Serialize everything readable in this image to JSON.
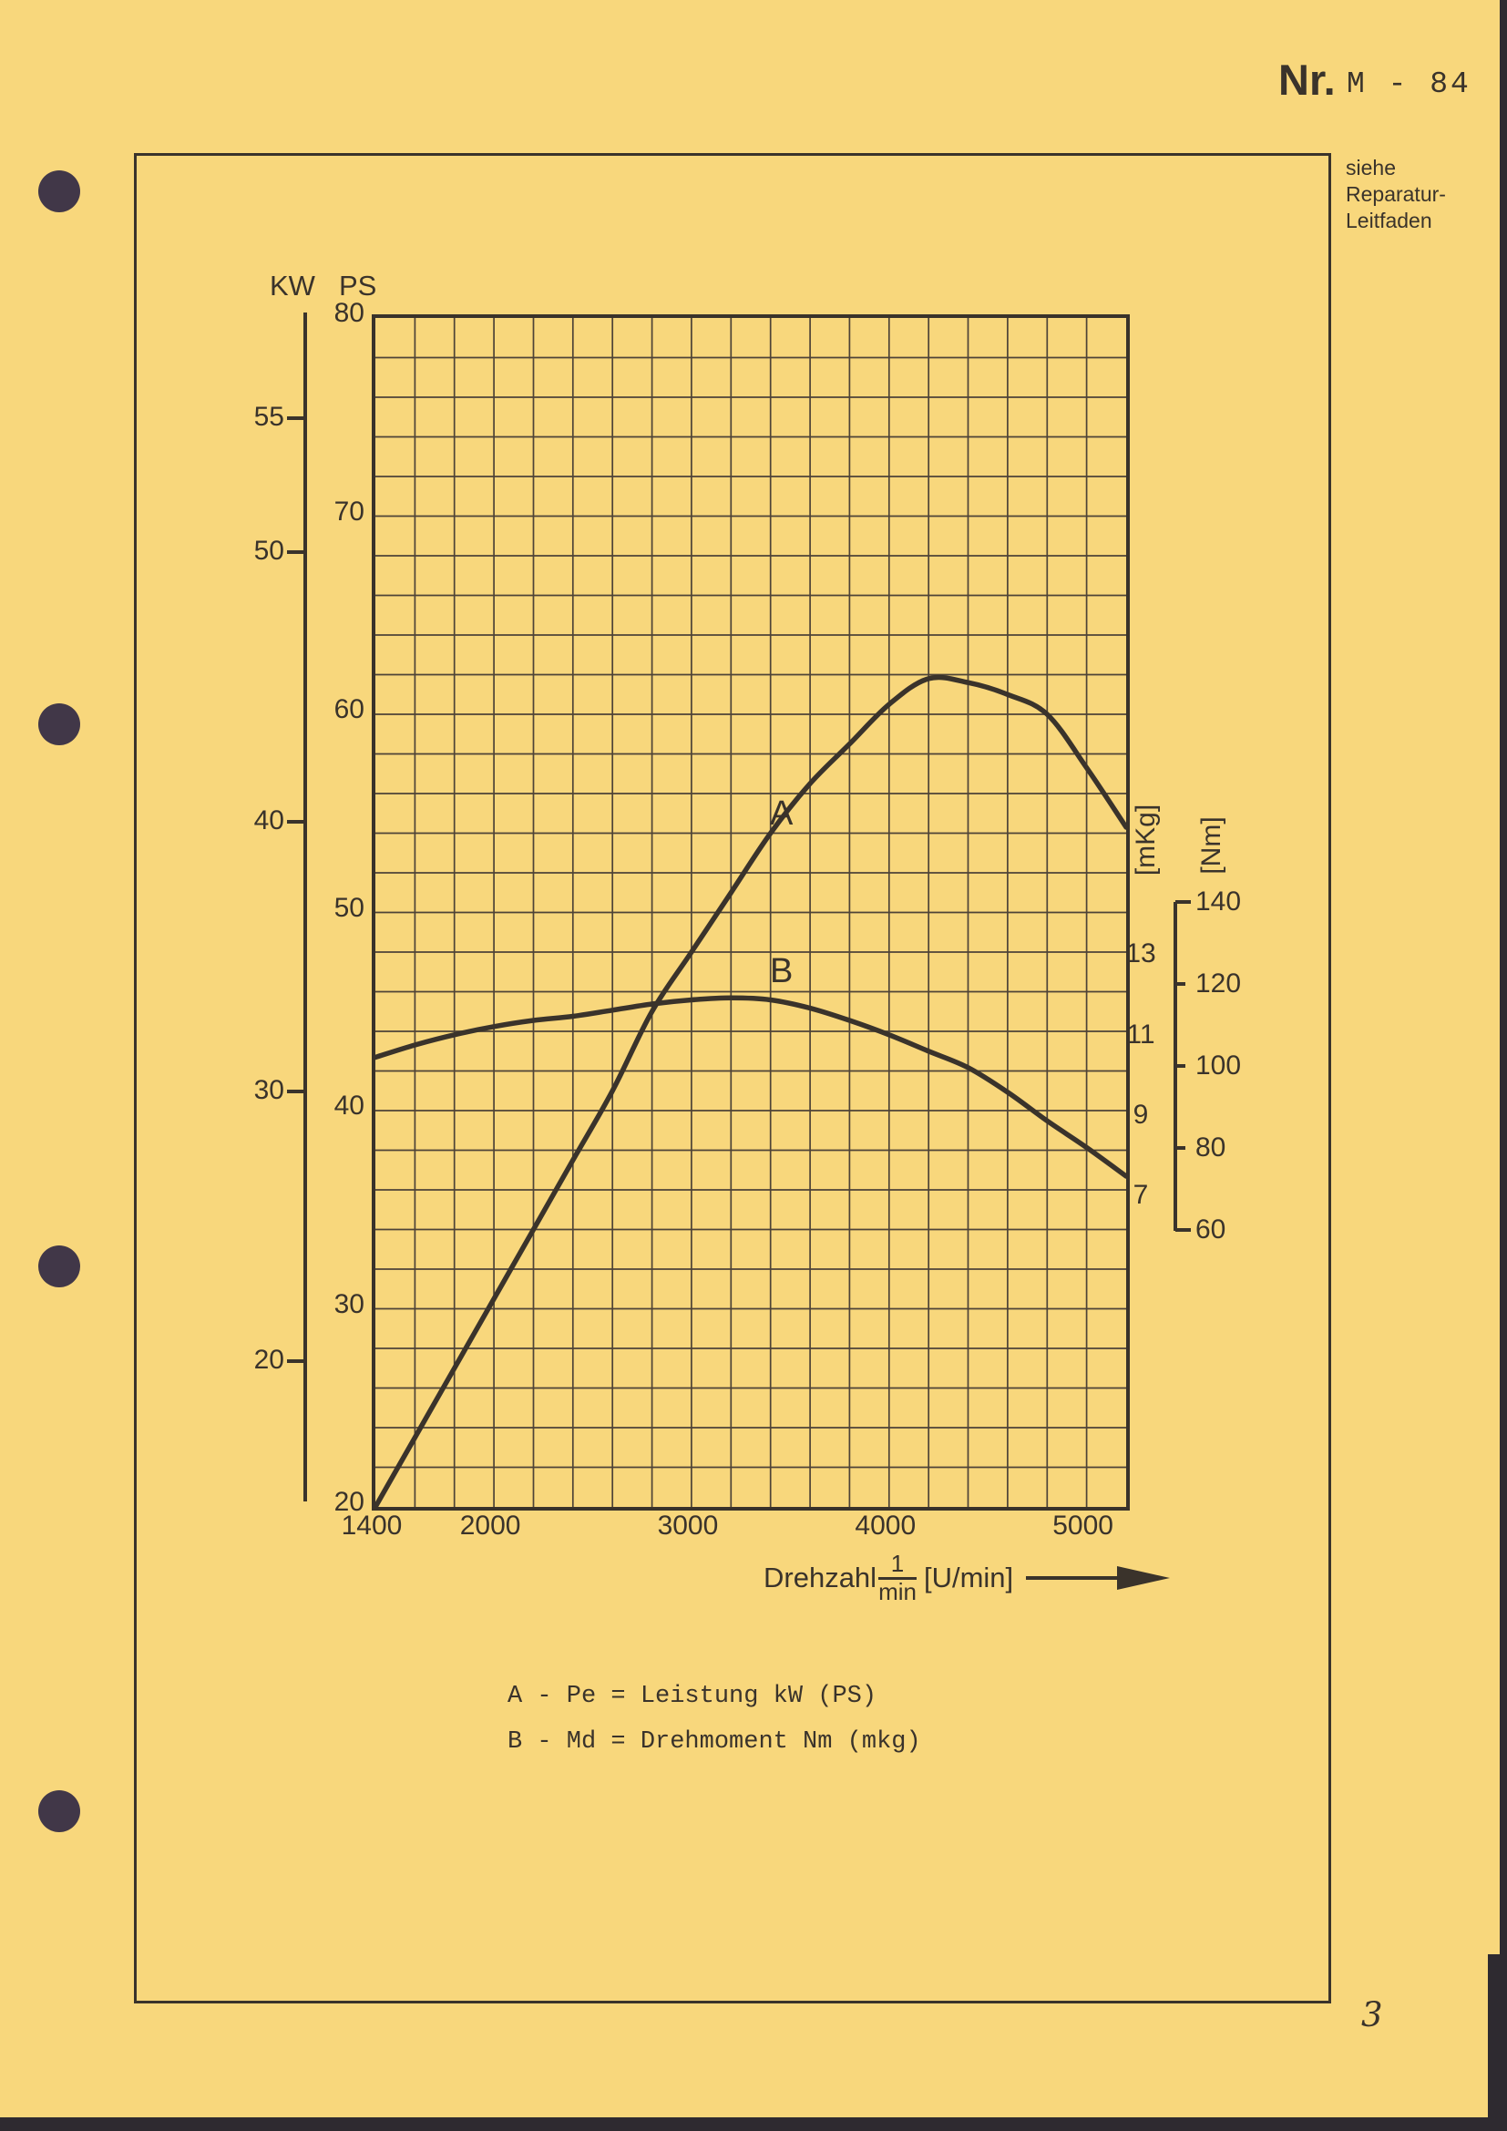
{
  "page": {
    "header": {
      "nr_label": "Nr.",
      "code": "M - 84"
    },
    "side_note_lines": [
      "siehe",
      "Reparatur-",
      "Leitfaden"
    ],
    "page_number": "3"
  },
  "chart_data": {
    "type": "line",
    "title": "",
    "x_axis": {
      "quantity": "Drehzahl",
      "fraction_numerator": "1",
      "fraction_denominator": "min",
      "unit": "[U/min]",
      "ticks": [
        1400,
        2000,
        3000,
        4000,
        5000
      ],
      "range": [
        1400,
        5200
      ]
    },
    "y_axis_left_kw": {
      "label": "KW",
      "ticks": [
        55,
        50,
        40,
        30,
        20
      ]
    },
    "y_axis_left_ps": {
      "label": "PS",
      "ticks": [
        80,
        70,
        60,
        50,
        40,
        30,
        20
      ],
      "range": [
        20,
        80
      ]
    },
    "y_axis_right_mkg": {
      "label": "[mKg]",
      "ticks": [
        13,
        11,
        9,
        7
      ]
    },
    "y_axis_right_nm": {
      "label": "[Nm]",
      "ticks": [
        140,
        120,
        100,
        80,
        60
      ],
      "range": [
        60,
        140
      ]
    },
    "grid": true,
    "legend_position": "below",
    "series": [
      {
        "name": "A",
        "unit": "PS",
        "points": [
          [
            1400,
            20
          ],
          [
            1600,
            23.5
          ],
          [
            1800,
            27
          ],
          [
            2000,
            30.5
          ],
          [
            2200,
            34
          ],
          [
            2400,
            37.5
          ],
          [
            2600,
            41
          ],
          [
            2800,
            45
          ],
          [
            3000,
            48
          ],
          [
            3200,
            51
          ],
          [
            3400,
            54
          ],
          [
            3600,
            56.5
          ],
          [
            3800,
            58.5
          ],
          [
            4000,
            60.5
          ],
          [
            4200,
            61.8
          ],
          [
            4400,
            61.6
          ],
          [
            4600,
            61
          ],
          [
            4800,
            60
          ],
          [
            5000,
            57.3
          ],
          [
            5200,
            54.3
          ]
        ]
      },
      {
        "name": "B",
        "unit": "Nm",
        "points": [
          [
            1400,
            103
          ],
          [
            1600,
            106
          ],
          [
            1800,
            108.5
          ],
          [
            2000,
            110.5
          ],
          [
            2200,
            112
          ],
          [
            2400,
            113
          ],
          [
            2600,
            114.5
          ],
          [
            2800,
            116
          ],
          [
            3000,
            117
          ],
          [
            3200,
            117.5
          ],
          [
            3400,
            117
          ],
          [
            3600,
            115
          ],
          [
            3800,
            112
          ],
          [
            4000,
            108.5
          ],
          [
            4200,
            104.5
          ],
          [
            4400,
            100.5
          ],
          [
            4600,
            94.5
          ],
          [
            4800,
            87.5
          ],
          [
            5000,
            81
          ],
          [
            5200,
            74
          ]
        ]
      }
    ],
    "legend": [
      "A - Pe = Leistung kW (PS)",
      "B - Md = Drehmoment Nm (mkg)"
    ]
  },
  "colors": {
    "paper": "#f8d77c",
    "ink": "#3a332b",
    "grid": "#4e4337"
  }
}
